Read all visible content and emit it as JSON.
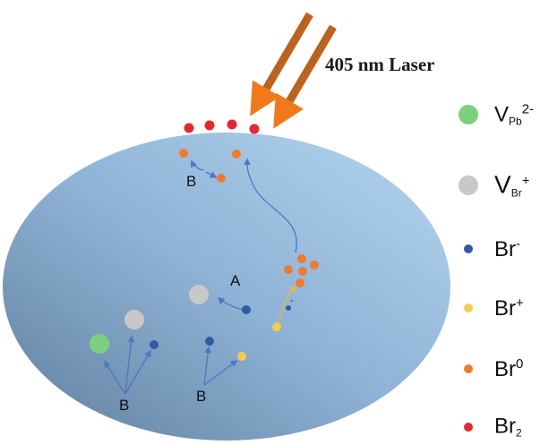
{
  "laser": {
    "label": "405 nm Laser",
    "beam_color": "#e06a1a"
  },
  "legend": [
    {
      "id": "vpb",
      "base": "V",
      "sub": "Pb",
      "sup": "2-",
      "color": "#7dd07d"
    },
    {
      "id": "vbr",
      "base": "V",
      "sub": "Br",
      "sup": "+",
      "color": "#c8c8c8"
    },
    {
      "id": "brm",
      "base": "Br",
      "sub": "",
      "sup": "-",
      "color": "#2e5aa8"
    },
    {
      "id": "brp",
      "base": "Br",
      "sub": "",
      "sup": "+",
      "color": "#f5cc4a"
    },
    {
      "id": "br0",
      "base": "Br",
      "sub": "",
      "sup": "0",
      "color": "#f07a2e"
    },
    {
      "id": "br2",
      "base": "Br",
      "sub": "2",
      "sup": "",
      "color": "#e8262e"
    }
  ],
  "labels": {
    "a": "A",
    "b1": "B",
    "b2": "B",
    "b3": "B",
    "charge": "-"
  },
  "colors": {
    "crystal_light": "#b4d6ef",
    "crystal_dark": "#5f7e9c",
    "arrow_blue": "#4a78c4",
    "arrow_yellow": "#e8b93a"
  }
}
